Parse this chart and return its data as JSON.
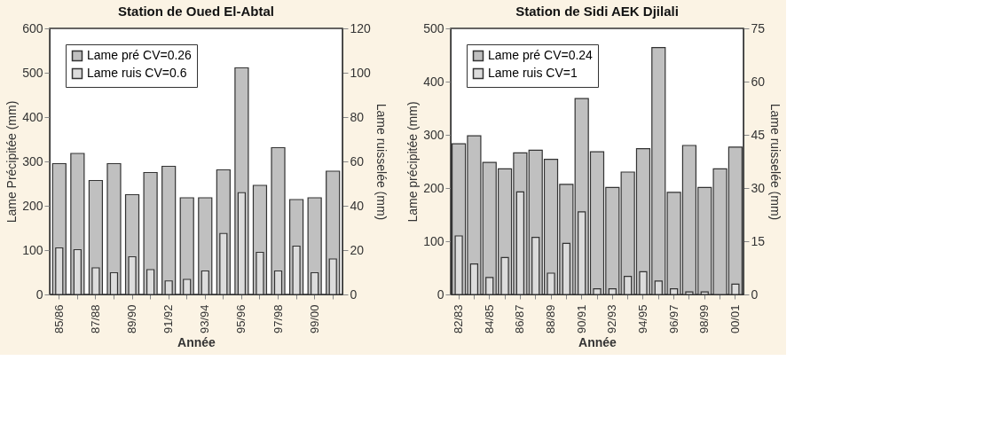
{
  "chart_data": [
    {
      "type": "bar",
      "title": "Station de Oued El-Abtal",
      "xlabel": "Année",
      "ylabel": "Lame Précipitée (mm)",
      "y2label": "Lame ruisselée (mm)",
      "categories": [
        "85/86",
        null,
        "87/88",
        null,
        "89/90",
        null,
        "91/92",
        null,
        "93/94",
        null,
        "95/96",
        null,
        "97/98",
        null,
        "99/00",
        null
      ],
      "series": [
        {
          "name": "Lame pré CV=0.26",
          "color": "#c0c0c0",
          "values": [
            295,
            318,
            257,
            295,
            225,
            275,
            289,
            218,
            218,
            281,
            511,
            246,
            331,
            214,
            218,
            278
          ]
        },
        {
          "name": "Lame ruis CV=0.6",
          "color": "#dcdcdc",
          "axis": "y2",
          "values": [
            21,
            20.2,
            12,
            9.8,
            17,
            11.2,
            6.1,
            6.8,
            10.6,
            27.5,
            45.9,
            19,
            10.6,
            21.8,
            9.8,
            16
          ]
        }
      ],
      "ylim": [
        0,
        600
      ],
      "yticks": [
        0,
        100,
        200,
        300,
        400,
        500,
        600
      ],
      "y2lim": [
        0,
        120
      ],
      "y2ticks": [
        0,
        20,
        40,
        60,
        80,
        100,
        120
      ],
      "grid": false,
      "legend": "top left"
    },
    {
      "type": "bar",
      "title": "Station de Sidi AEK Djilali",
      "xlabel": "Année",
      "ylabel": "Lame précipitée (mm)",
      "y2label": "Lame ruisselée (mm)",
      "categories": [
        "82/83",
        null,
        "84/85",
        null,
        "86/87",
        null,
        "88/89",
        null,
        "90/91",
        null,
        "92/93",
        null,
        "94/95",
        null,
        "96/97",
        null,
        "98/99",
        null,
        "00/01"
      ],
      "series": [
        {
          "name": "Lame pré CV=0.24",
          "color": "#c0c0c0",
          "values": [
            283,
            298,
            248,
            236,
            266,
            271,
            254,
            207,
            368,
            268,
            201,
            230,
            274,
            464,
            192,
            280,
            201,
            236,
            277
          ]
        },
        {
          "name": "Lame ruis CV=1",
          "color": "#dcdcdc",
          "axis": "y2",
          "values": [
            16.5,
            8.6,
            4.8,
            10.4,
            28.9,
            16.1,
            6,
            14.4,
            23.3,
            1.6,
            1.6,
            5.1,
            6.4,
            3.8,
            1.6,
            0.7,
            0.7,
            null,
            2.9
          ]
        }
      ],
      "ylim": [
        0,
        500
      ],
      "yticks": [
        0,
        100,
        200,
        300,
        400,
        500
      ],
      "y2lim": [
        0,
        75
      ],
      "y2ticks": [
        0,
        15,
        30,
        45,
        60,
        75
      ],
      "grid": false,
      "legend": "top left"
    }
  ]
}
